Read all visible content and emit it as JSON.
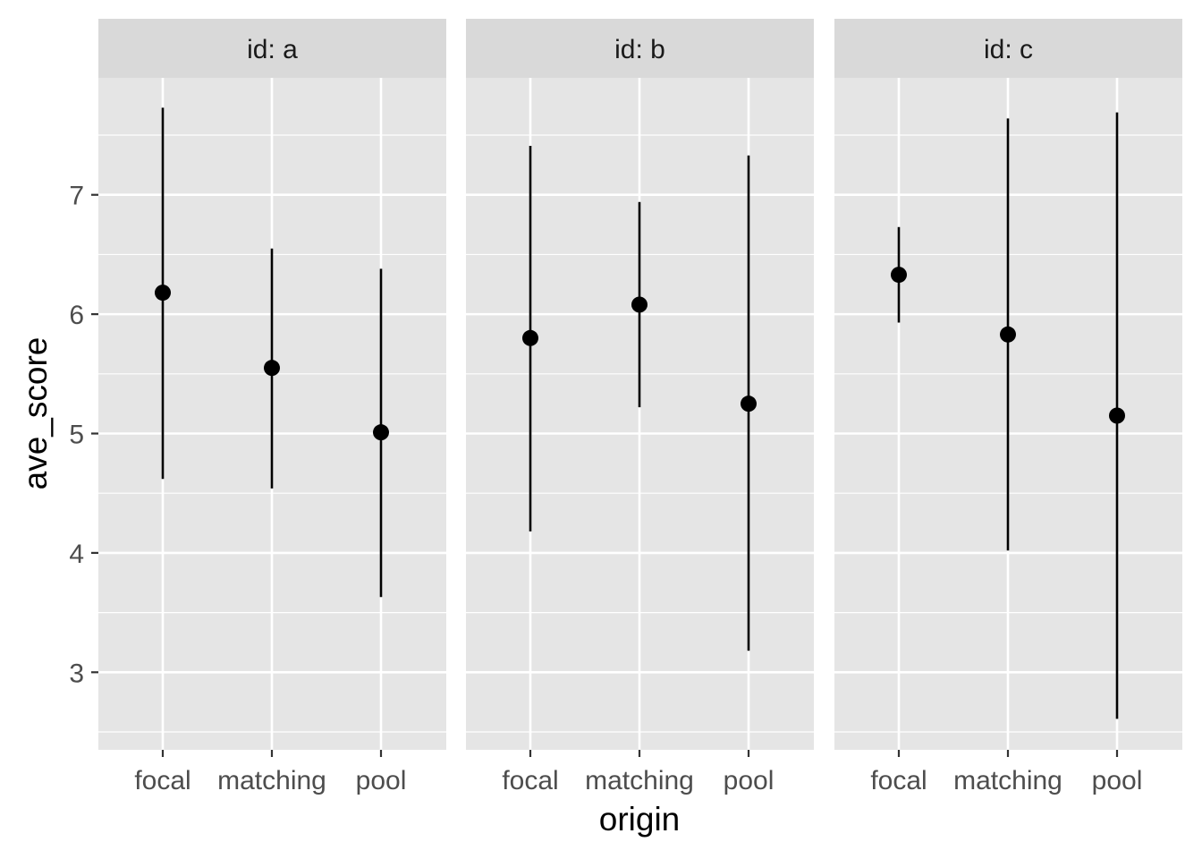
{
  "chart_data": {
    "type": "pointrange",
    "xlabel": "origin",
    "ylabel": "ave_score",
    "categories": [
      "focal",
      "matching",
      "pool"
    ],
    "yticks": [
      3,
      4,
      5,
      6,
      7
    ],
    "ylim": [
      2.35,
      7.98
    ],
    "grid": true,
    "facets": [
      {
        "label": "id: a",
        "points": [
          {
            "x": "focal",
            "y": 6.18,
            "ymin": 4.62,
            "ymax": 7.73
          },
          {
            "x": "matching",
            "y": 5.55,
            "ymin": 4.54,
            "ymax": 6.55
          },
          {
            "x": "pool",
            "y": 5.01,
            "ymin": 3.63,
            "ymax": 6.38
          }
        ]
      },
      {
        "label": "id: b",
        "points": [
          {
            "x": "focal",
            "y": 5.8,
            "ymin": 4.18,
            "ymax": 7.41
          },
          {
            "x": "matching",
            "y": 6.08,
            "ymin": 5.22,
            "ymax": 6.94
          },
          {
            "x": "pool",
            "y": 5.25,
            "ymin": 3.18,
            "ymax": 7.33
          }
        ]
      },
      {
        "label": "id: c",
        "points": [
          {
            "x": "focal",
            "y": 6.33,
            "ymin": 5.93,
            "ymax": 6.73
          },
          {
            "x": "matching",
            "y": 5.83,
            "ymin": 4.02,
            "ymax": 7.64
          },
          {
            "x": "pool",
            "y": 5.15,
            "ymin": 2.61,
            "ymax": 7.69
          }
        ]
      }
    ],
    "colors": {
      "panel": "#e5e5e5",
      "strip": "#d9d9d9",
      "grid": "#ffffff",
      "mark": "#000000"
    }
  }
}
